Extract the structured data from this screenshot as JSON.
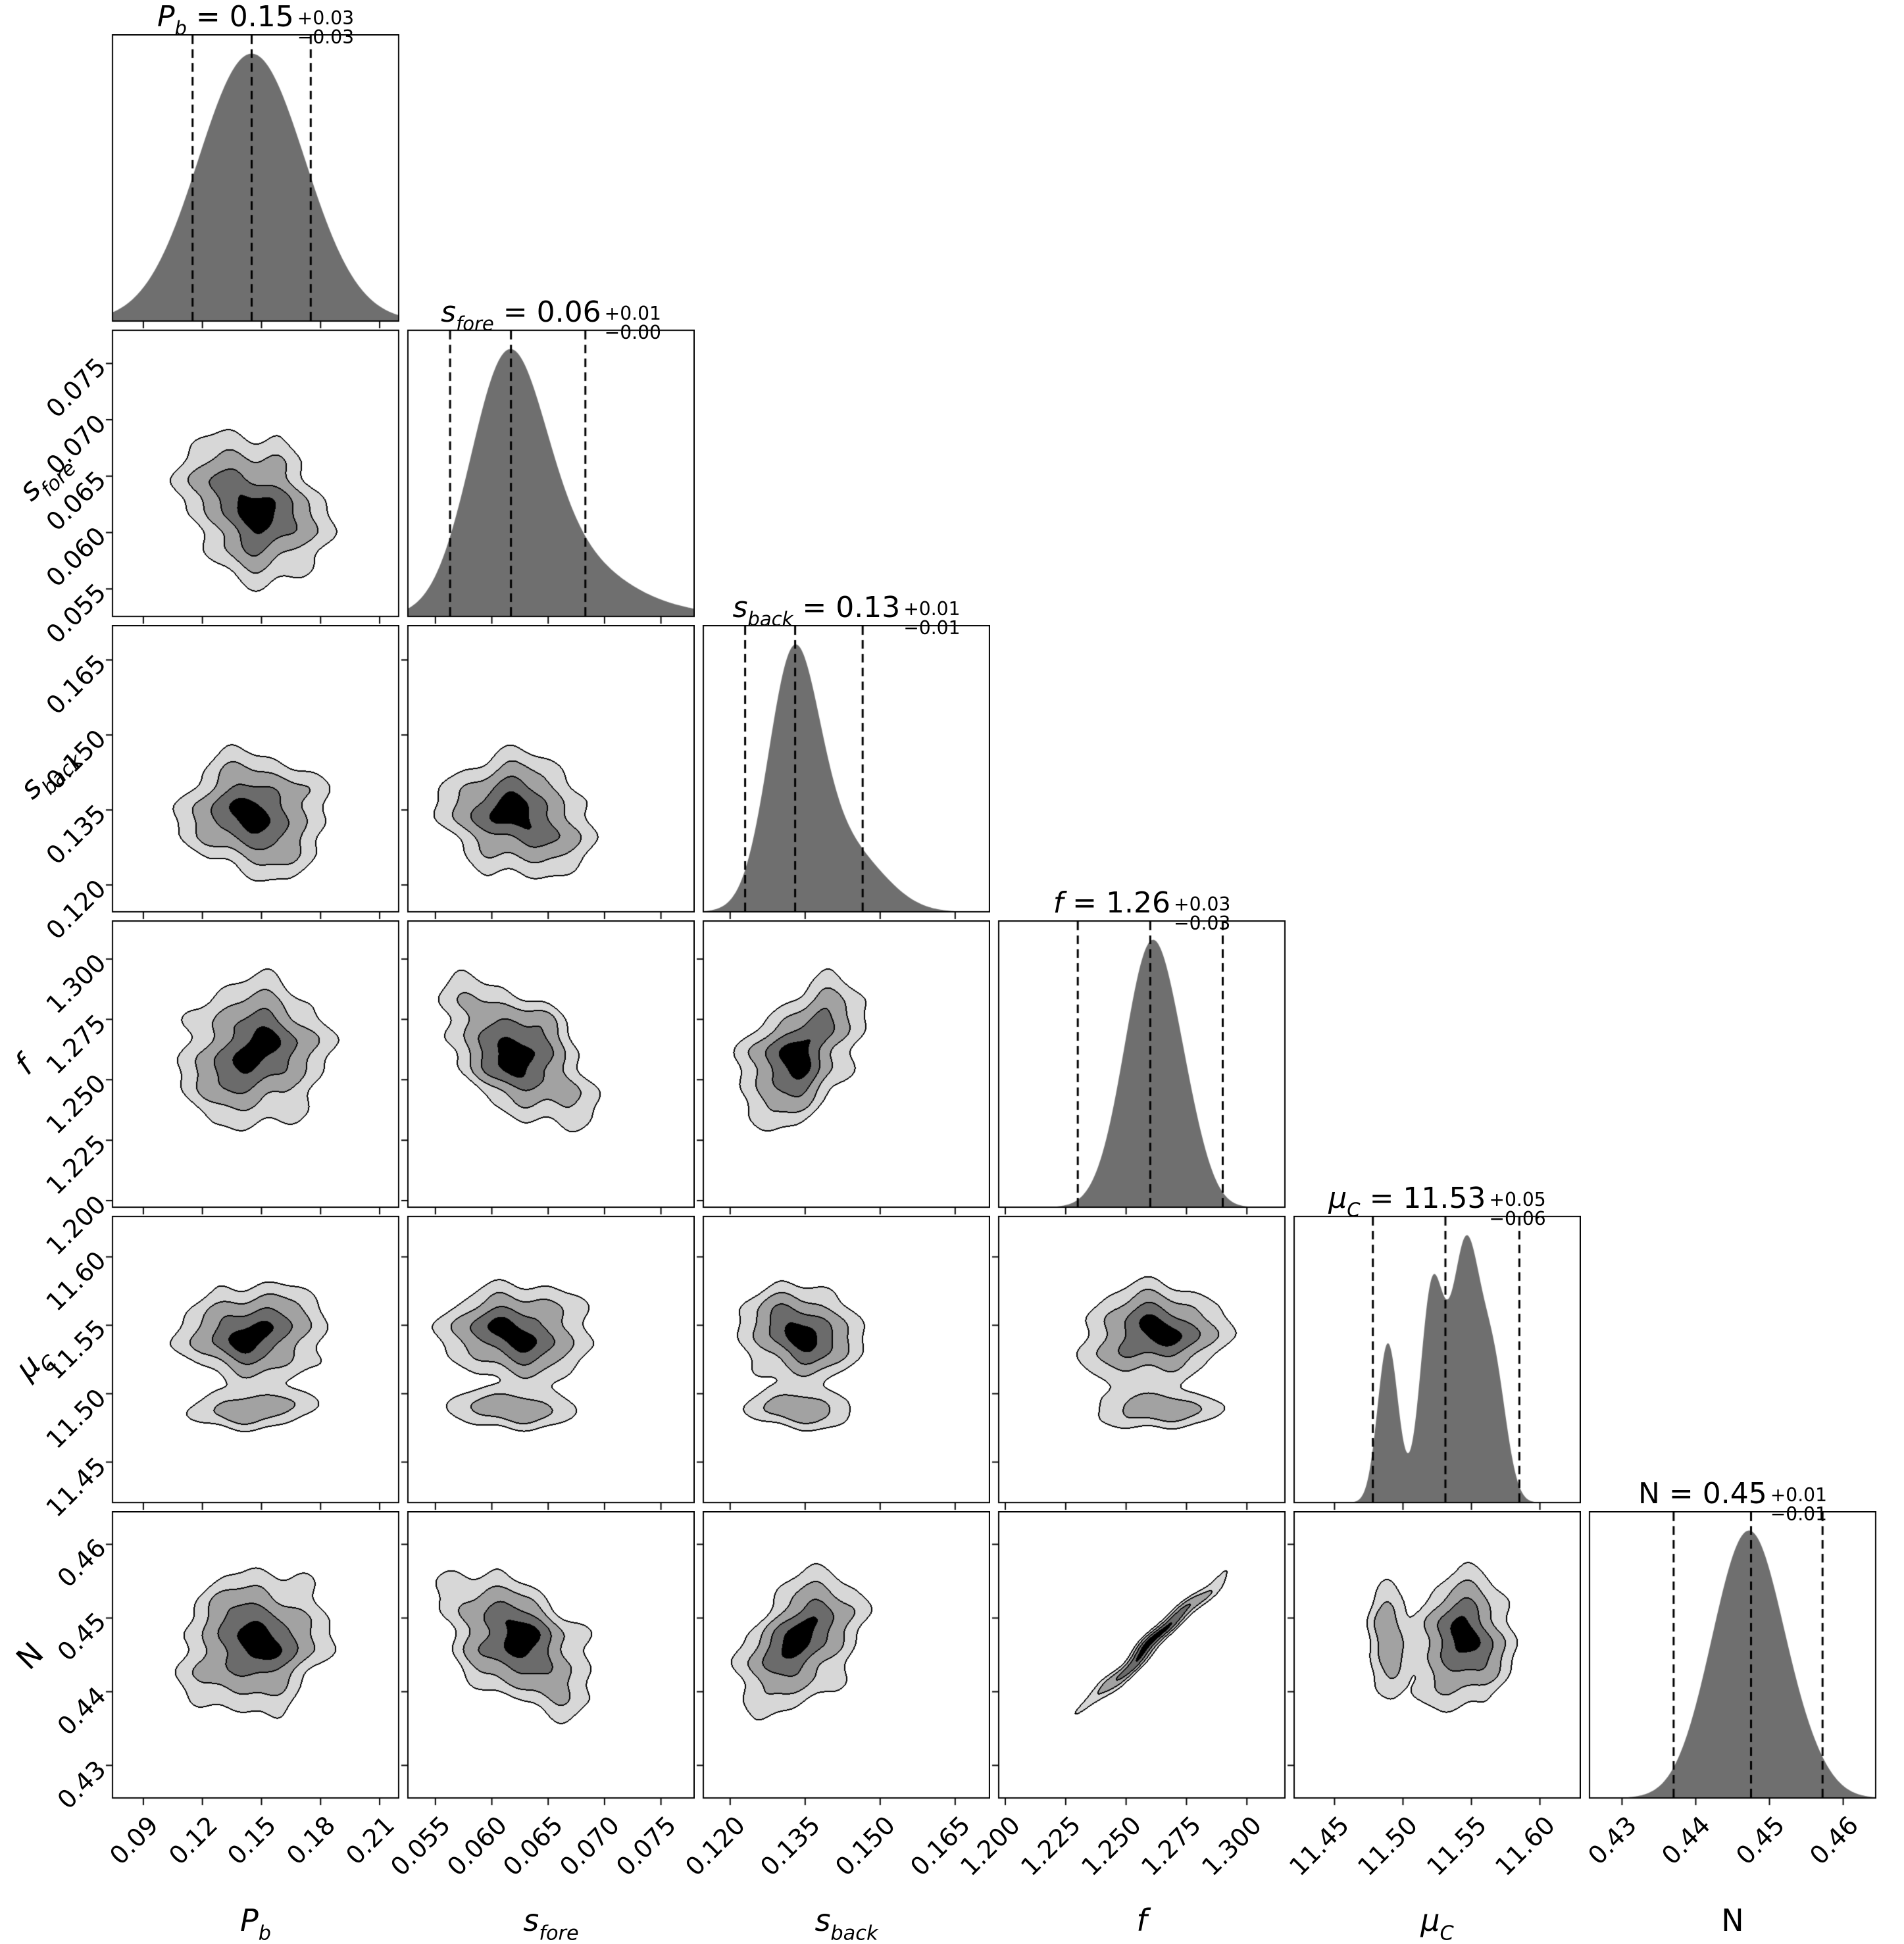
{
  "figure": {
    "kind": "corner-plot",
    "background": "#ffffff",
    "colors": {
      "hist_fill": "#6f6f6f",
      "contour_fills": [
        "#d7d7d7",
        "#a2a2a2",
        "#6b6b6b",
        "#000000"
      ],
      "line": "#000000",
      "quantile_line": "#000000"
    }
  },
  "chart_data": {
    "type": "corner",
    "n_params": 6,
    "equals": " = ",
    "grid": "off",
    "legend": "none",
    "description": "6-parameter MCMC corner plot: diagonal 1D marginal posteriors with 16/50/84 percentile dashed lines and titles; lower triangle filled grayscale 2D contours at 0.5/1/1.5/2 sigma levels",
    "parameters": [
      {
        "name": "P_b",
        "label_main": "P",
        "label_sub": "b",
        "italic": true,
        "title_value": "0.15",
        "title_plus": "+0.03",
        "title_minus": "−0.03",
        "range": [
          0.074,
          0.22
        ],
        "ticks": [
          "0.09",
          "0.12",
          "0.15",
          "0.18",
          "0.21"
        ],
        "tick_values": [
          0.09,
          0.12,
          0.15,
          0.18,
          0.21
        ],
        "quantiles": [
          0.115,
          0.145,
          0.175
        ],
        "pdf": [
          [
            0.145,
            0.027,
            1.0
          ]
        ],
        "c2d": [
          [
            0.146,
            0.019,
            1.0
          ]
        ]
      },
      {
        "name": "s_fore",
        "label_main": "s",
        "label_sub": "fore",
        "italic": true,
        "title_value": "0.06",
        "title_plus": "+0.01",
        "title_minus": "−0.00",
        "range": [
          0.0525,
          0.078
        ],
        "ticks": [
          "0.055",
          "0.060",
          "0.065",
          "0.070",
          "0.075"
        ],
        "tick_values": [
          0.055,
          0.06,
          0.065,
          0.07,
          0.075
        ],
        "quantiles": [
          0.0563,
          0.0617,
          0.0683
        ],
        "pdf": [
          [
            0.0613,
            0.0033,
            1.0
          ],
          [
            0.066,
            0.0046,
            0.22
          ],
          [
            0.071,
            0.006,
            0.05
          ]
        ],
        "c2d": [
          [
            0.0622,
            0.0034,
            1.0
          ]
        ]
      },
      {
        "name": "s_back",
        "label_main": "s",
        "label_sub": "back",
        "italic": true,
        "title_value": "0.13",
        "title_plus": "+0.01",
        "title_minus": "−0.01",
        "range": [
          0.1145,
          0.172
        ],
        "ticks": [
          "0.120",
          "0.135",
          "0.150",
          "0.165"
        ],
        "tick_values": [
          0.12,
          0.135,
          0.15,
          0.165
        ],
        "quantiles": [
          0.123,
          0.133,
          0.1465
        ],
        "pdf": [
          [
            0.1325,
            0.005,
            1.0
          ],
          [
            0.14,
            0.0075,
            0.3
          ],
          [
            0.149,
            0.006,
            0.06
          ]
        ],
        "c2d": [
          [
            0.134,
            0.0063,
            1.0
          ]
        ]
      },
      {
        "name": "f",
        "label_main": "f",
        "label_sub": "",
        "italic": true,
        "title_value": "1.26",
        "title_plus": "+0.03",
        "title_minus": "−0.03",
        "range": [
          1.197,
          1.316
        ],
        "ticks": [
          "1.200",
          "1.225",
          "1.250",
          "1.275",
          "1.300"
        ],
        "tick_values": [
          1.2,
          1.225,
          1.25,
          1.275,
          1.3
        ],
        "quantiles": [
          1.23,
          1.26,
          1.29
        ],
        "pdf": [
          [
            1.2555,
            0.0105,
            0.93
          ],
          [
            1.264,
            0.0095,
            1.0
          ],
          [
            1.2765,
            0.008,
            0.3
          ]
        ],
        "c2d": [
          [
            1.261,
            0.0155,
            1.0
          ]
        ]
      },
      {
        "name": "mu_C",
        "label_main": "μ",
        "label_sub": "C",
        "italic": true,
        "title_value": "11.53",
        "title_plus": "+0.05",
        "title_minus": "−0.06",
        "range": [
          11.42,
          11.63
        ],
        "ticks": [
          "11.45",
          "11.50",
          "11.55",
          "11.60"
        ],
        "tick_values": [
          11.45,
          11.5,
          11.55,
          11.6
        ],
        "quantiles": [
          11.478,
          11.531,
          11.585
        ],
        "pdf": [
          [
            11.489,
            0.0075,
            0.62
          ],
          [
            11.521,
            0.0085,
            0.8
          ],
          [
            11.546,
            0.011,
            1.0
          ],
          [
            11.567,
            0.009,
            0.45
          ]
        ],
        "c2d": [
          [
            11.544,
            0.0185,
            1.0
          ],
          [
            11.489,
            0.0085,
            0.55
          ]
        ]
      },
      {
        "name": "N",
        "label_main": "N",
        "label_sub": "",
        "italic": false,
        "title_value": "0.45",
        "title_plus": "+0.01",
        "title_minus": "−0.01",
        "range": [
          0.4255,
          0.4645
        ],
        "ticks": [
          "0.43",
          "0.44",
          "0.45",
          "0.46"
        ],
        "tick_values": [
          0.43,
          0.44,
          0.45,
          0.46
        ],
        "quantiles": [
          0.437,
          0.4475,
          0.4572
        ],
        "pdf": [
          [
            0.4445,
            0.0042,
            0.93
          ],
          [
            0.4487,
            0.0038,
            1.0
          ],
          [
            0.4541,
            0.0036,
            0.25
          ]
        ],
        "c2d": [
          [
            0.4468,
            0.0049,
            1.0
          ]
        ]
      }
    ],
    "correlations": {
      "1-0": -0.3,
      "2-0": -0.1,
      "2-1": -0.15,
      "3-0": 0.1,
      "3-1": -0.52,
      "3-2": 0.45,
      "4-0": 0.0,
      "4-1": 0.0,
      "4-2": 0.0,
      "4-3": 0.1,
      "5-0": 0.12,
      "5-1": -0.5,
      "5-2": 0.45,
      "5-3": 0.985,
      "5-4": 0.15
    },
    "contour_sigma_levels": [
      0.5,
      1.0,
      1.5,
      2.0
    ]
  }
}
